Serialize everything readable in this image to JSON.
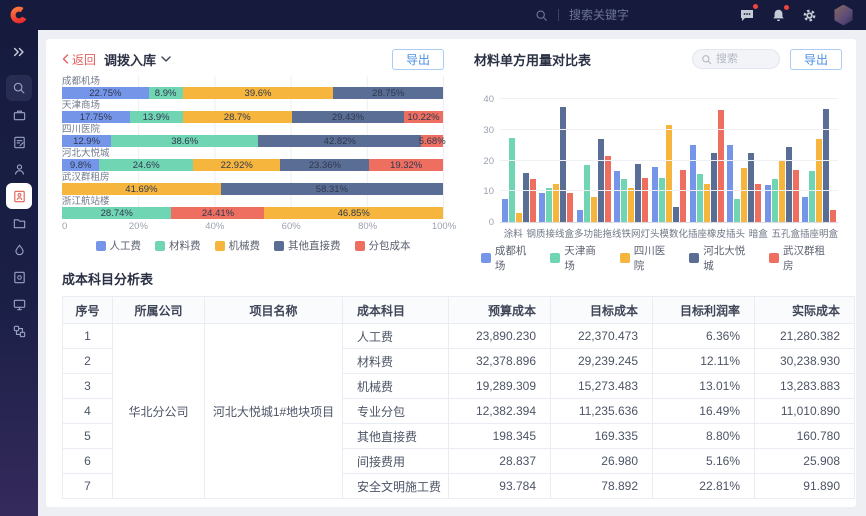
{
  "colors": {
    "accent_blue": "#4a8fe0",
    "back_red": "#e15f5f",
    "header_bg": "#161b3e",
    "badge_red": "#f0453e",
    "series": {
      "blue": "#7596e8",
      "green": "#70d5b2",
      "yellow": "#f6b53d",
      "slate": "#5a6d95",
      "red": "#ee6e60"
    }
  },
  "header": {
    "search_placeholder": "搜索关键字"
  },
  "breadcrumb": {
    "back_label": "返回",
    "title": "调拨入库"
  },
  "left_panel": {
    "export_label": "导出"
  },
  "right_panel": {
    "title": "材料单方用量对比表",
    "search_placeholder": "搜索",
    "export_label": "导出"
  },
  "chart_data": [
    {
      "type": "bar",
      "orientation": "horizontal-stacked",
      "title": "调拨入库",
      "xlim": [
        0,
        100
      ],
      "x_ticks": [
        "0",
        "20%",
        "40%",
        "60%",
        "80%",
        "100%"
      ],
      "legend": [
        "人工费",
        "材料费",
        "机械费",
        "其他直接费",
        "分包成本"
      ],
      "series_colors": {
        "人工费": "#7596e8",
        "材料费": "#70d5b2",
        "机械费": "#f6b53d",
        "其他直接费": "#5a6d95",
        "分包成本": "#ee6e60"
      },
      "rows": [
        {
          "category": "成都机场",
          "segments": [
            [
              "人工费",
              22.75
            ],
            [
              "材料费",
              8.9
            ],
            [
              "机械费",
              39.6
            ],
            [
              "其他直接费",
              28.75
            ]
          ]
        },
        {
          "category": "天津商场",
          "segments": [
            [
              "人工费",
              17.75
            ],
            [
              "材料费",
              13.9
            ],
            [
              "机械费",
              28.7
            ],
            [
              "其他直接费",
              29.43
            ],
            [
              "分包成本",
              10.22
            ]
          ]
        },
        {
          "category": "四川医院",
          "segments": [
            [
              "人工费",
              12.9
            ],
            [
              "材料费",
              38.6
            ],
            [
              "其他直接费",
              42.82
            ],
            [
              "分包成本",
              5.68
            ]
          ]
        },
        {
          "category": "河北大悦城",
          "segments": [
            [
              "人工费",
              9.8
            ],
            [
              "材料费",
              24.6
            ],
            [
              "机械费",
              22.92
            ],
            [
              "其他直接费",
              23.36
            ],
            [
              "分包成本",
              19.32
            ]
          ]
        },
        {
          "category": "武汉群租房",
          "segments": [
            [
              "机械费",
              41.69
            ],
            [
              "其他直接费",
              58.31
            ]
          ]
        },
        {
          "category": "浙江航站楼",
          "segments": [
            [
              "材料费",
              28.74
            ],
            [
              "分包成本",
              24.41
            ],
            [
              "机械费",
              46.85
            ]
          ]
        }
      ]
    },
    {
      "type": "bar",
      "orientation": "vertical-grouped",
      "title": "材料单方用量对比表",
      "categories": [
        "涂料",
        "钢质接线盒",
        "多功能拖线",
        "铁网灯头",
        "模数化插座",
        "橡皮插头",
        "暗盒",
        "五孔盒",
        "插座明盒"
      ],
      "ylim": [
        0,
        45
      ],
      "y_ticks": [
        0,
        10,
        20,
        30,
        40
      ],
      "series": [
        {
          "name": "成都机场",
          "color": "#7596e8",
          "values": [
            7.5,
            9.5,
            4,
            16.5,
            18,
            25,
            25,
            12,
            8
          ]
        },
        {
          "name": "天津商场",
          "color": "#70d5b2",
          "values": [
            27.5,
            11,
            18.5,
            14,
            14.5,
            15.5,
            7.5,
            14,
            16.5
          ]
        },
        {
          "name": "四川医院",
          "color": "#f6b53d",
          "values": [
            3,
            12.5,
            8,
            11,
            31.5,
            12.5,
            17.5,
            20,
            27
          ]
        },
        {
          "name": "河北大悦城",
          "color": "#5a6d95",
          "values": [
            16,
            37.5,
            27,
            19,
            5,
            22.5,
            22.5,
            24.5,
            37
          ]
        },
        {
          "name": "武汉群租房",
          "color": "#ee6e60",
          "values": [
            14,
            9.5,
            21.5,
            14.5,
            17,
            36.5,
            12.5,
            17,
            4
          ]
        }
      ]
    }
  ],
  "table": {
    "title": "成本科目分析表",
    "headers": [
      "序号",
      "所属公司",
      "项目名称",
      "成本科目",
      "预算成本",
      "目标成本",
      "目标利润率",
      "实际成本"
    ],
    "company": "华北分公司",
    "project": "河北大悦城1#地块项目",
    "rows": [
      {
        "no": "1",
        "subject": "人工费",
        "budget": "23,890.230",
        "target": "22,370.473",
        "margin": "6.36%",
        "actual": "21,280.382"
      },
      {
        "no": "2",
        "subject": "材料费",
        "budget": "32,378.896",
        "target": "29,239.245",
        "margin": "12.11%",
        "actual": "30,238.930"
      },
      {
        "no": "3",
        "subject": "机械费",
        "budget": "19,289.309",
        "target": "15,273.483",
        "margin": "13.01%",
        "actual": "13,283.883"
      },
      {
        "no": "4",
        "subject": "专业分包",
        "budget": "12,382.394",
        "target": "11,235.636",
        "margin": "16.49%",
        "actual": "11,010.890"
      },
      {
        "no": "5",
        "subject": "其他直接费",
        "budget": "198.345",
        "target": "169.335",
        "margin": "8.80%",
        "actual": "160.780"
      },
      {
        "no": "6",
        "subject": "间接费用",
        "budget": "28.837",
        "target": "26.980",
        "margin": "5.16%",
        "actual": "25.908"
      },
      {
        "no": "7",
        "subject": "安全文明施工费",
        "budget": "93.784",
        "target": "78.892",
        "margin": "22.81%",
        "actual": "91.890"
      }
    ]
  }
}
